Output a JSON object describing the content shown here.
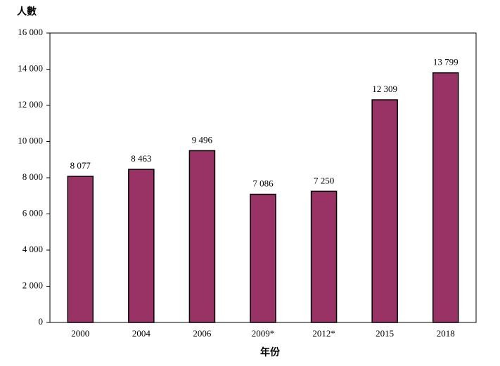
{
  "chart_data": {
    "type": "bar",
    "y_axis_label": "人數",
    "x_axis_label": "年份",
    "categories": [
      "2000",
      "2004",
      "2006",
      "2009*",
      "2012*",
      "2015",
      "2018"
    ],
    "values": [
      8077,
      8463,
      9496,
      7086,
      7250,
      12309,
      13799
    ],
    "value_labels": [
      "8 077",
      "8 463",
      "9 496",
      "7 086",
      "7 250",
      "12 309",
      "13 799"
    ],
    "color": "#993366",
    "ylim": [
      0,
      16000
    ],
    "yticks": [
      0,
      {
        "value": 2000,
        "label": "2 000"
      },
      {
        "value": 4000,
        "label": "4 000"
      },
      {
        "value": 6000,
        "label": "6 000"
      },
      {
        "value": 8000,
        "label": "8 000"
      },
      {
        "value": 10000,
        "label": "10 000"
      },
      {
        "value": 12000,
        "label": "12 000"
      },
      {
        "value": 14000,
        "label": "14 000"
      },
      {
        "value": 16000,
        "label": "16 000"
      }
    ],
    "grid": false
  }
}
